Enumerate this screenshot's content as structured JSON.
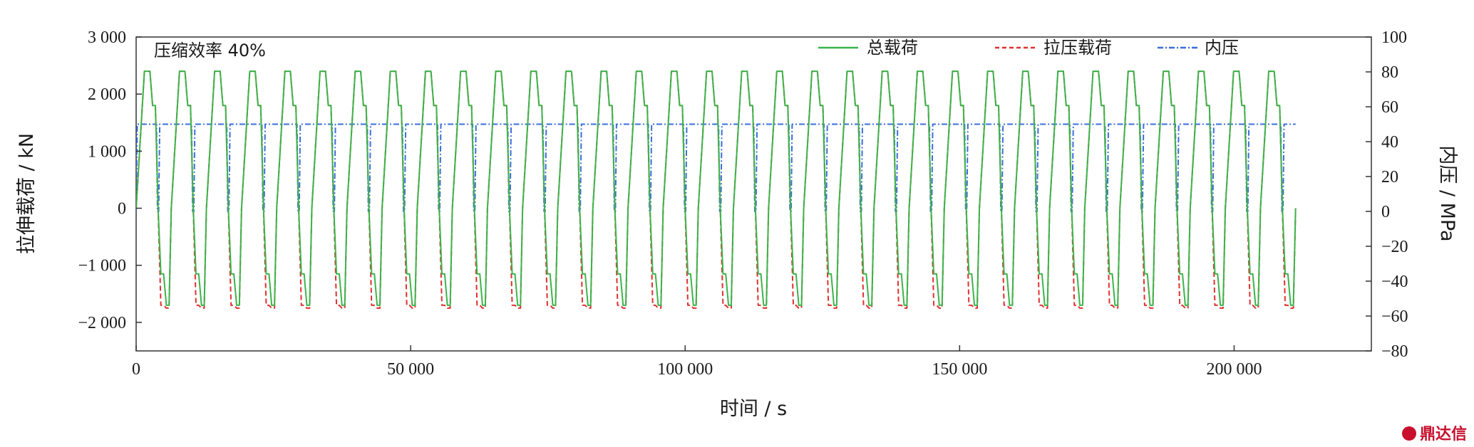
{
  "chart_data": {
    "type": "line",
    "annotation": "压缩效率 40%",
    "xlabel": "时间 / s",
    "ylabel_left": "拉伸载荷 / kN",
    "ylabel_right": "内压 / MPa",
    "xlim": [
      0,
      225000
    ],
    "ylim_left": [
      -2500,
      3000
    ],
    "ylim_right": [
      -80,
      100
    ],
    "x_ticks": [
      0,
      50000,
      100000,
      150000,
      200000
    ],
    "x_tick_labels": [
      "0",
      "50 000",
      "100 000",
      "150 000",
      "200 000"
    ],
    "y_left_ticks": [
      3000,
      2000,
      1000,
      0,
      -1000,
      -2000
    ],
    "y_left_tick_labels": [
      "3 000",
      "2 000",
      "1 000",
      "0",
      "−1 000",
      "−2 000"
    ],
    "y_right_ticks": [
      100,
      80,
      60,
      40,
      20,
      0,
      -20,
      -40,
      -60,
      -80
    ],
    "y_right_tick_labels": [
      "100",
      "80",
      "60",
      "40",
      "20",
      "0",
      "−20",
      "−40",
      "−60",
      "−80"
    ],
    "grid": false,
    "legend_position": "top-right",
    "cycle_count": 33,
    "cycle_period_s": 6400,
    "series": [
      {
        "name": "总载荷",
        "axis": "left",
        "color": "#3cb44b",
        "style": "solid",
        "x": [
          0,
          1500,
          2500,
          3000,
          3500,
          4000,
          4500,
          5000,
          5500,
          6000,
          6400
        ],
        "values": [
          0,
          2400,
          2400,
          1800,
          1800,
          0,
          -1150,
          -1150,
          -1700,
          -1700,
          0
        ]
      },
      {
        "name": "拉压载荷",
        "axis": "left",
        "color": "#e03030",
        "style": "dashed",
        "x": [
          0,
          1500,
          2500,
          3000,
          3500,
          4000,
          4500,
          5000,
          5500,
          6000,
          6400
        ],
        "values": [
          0,
          2400,
          2400,
          1800,
          1800,
          0,
          -1700,
          -1700,
          -1750,
          -1750,
          0
        ]
      },
      {
        "name": "内压",
        "axis": "right",
        "color": "#3a6fd8",
        "style": "dash-dot",
        "x": [
          0,
          200,
          3700,
          3900,
          4100,
          4300,
          6400
        ],
        "values": [
          0,
          50,
          50,
          0,
          0,
          50,
          50
        ]
      }
    ]
  },
  "watermark": "鼎达信"
}
